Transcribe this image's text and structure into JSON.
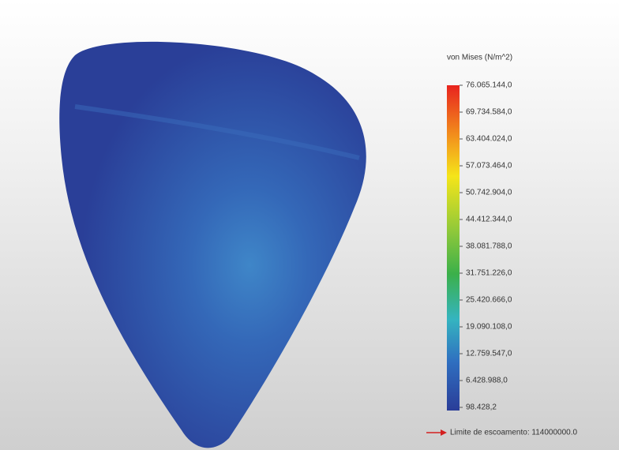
{
  "legend": {
    "title": "von Mises (N/m^2)",
    "labels": [
      "76.065.144,0",
      "69.734.584,0",
      "63.404.024,0",
      "57.073.464,0",
      "50.742.904,0",
      "44.412.344,0",
      "38.081.788,0",
      "31.751.226,0",
      "25.420.666,0",
      "19.090.108,0",
      "12.759.547,0",
      "6.428.988,0",
      "98.428,2"
    ]
  },
  "yield_limit": "Limite de escoamento: 114000000.0"
}
